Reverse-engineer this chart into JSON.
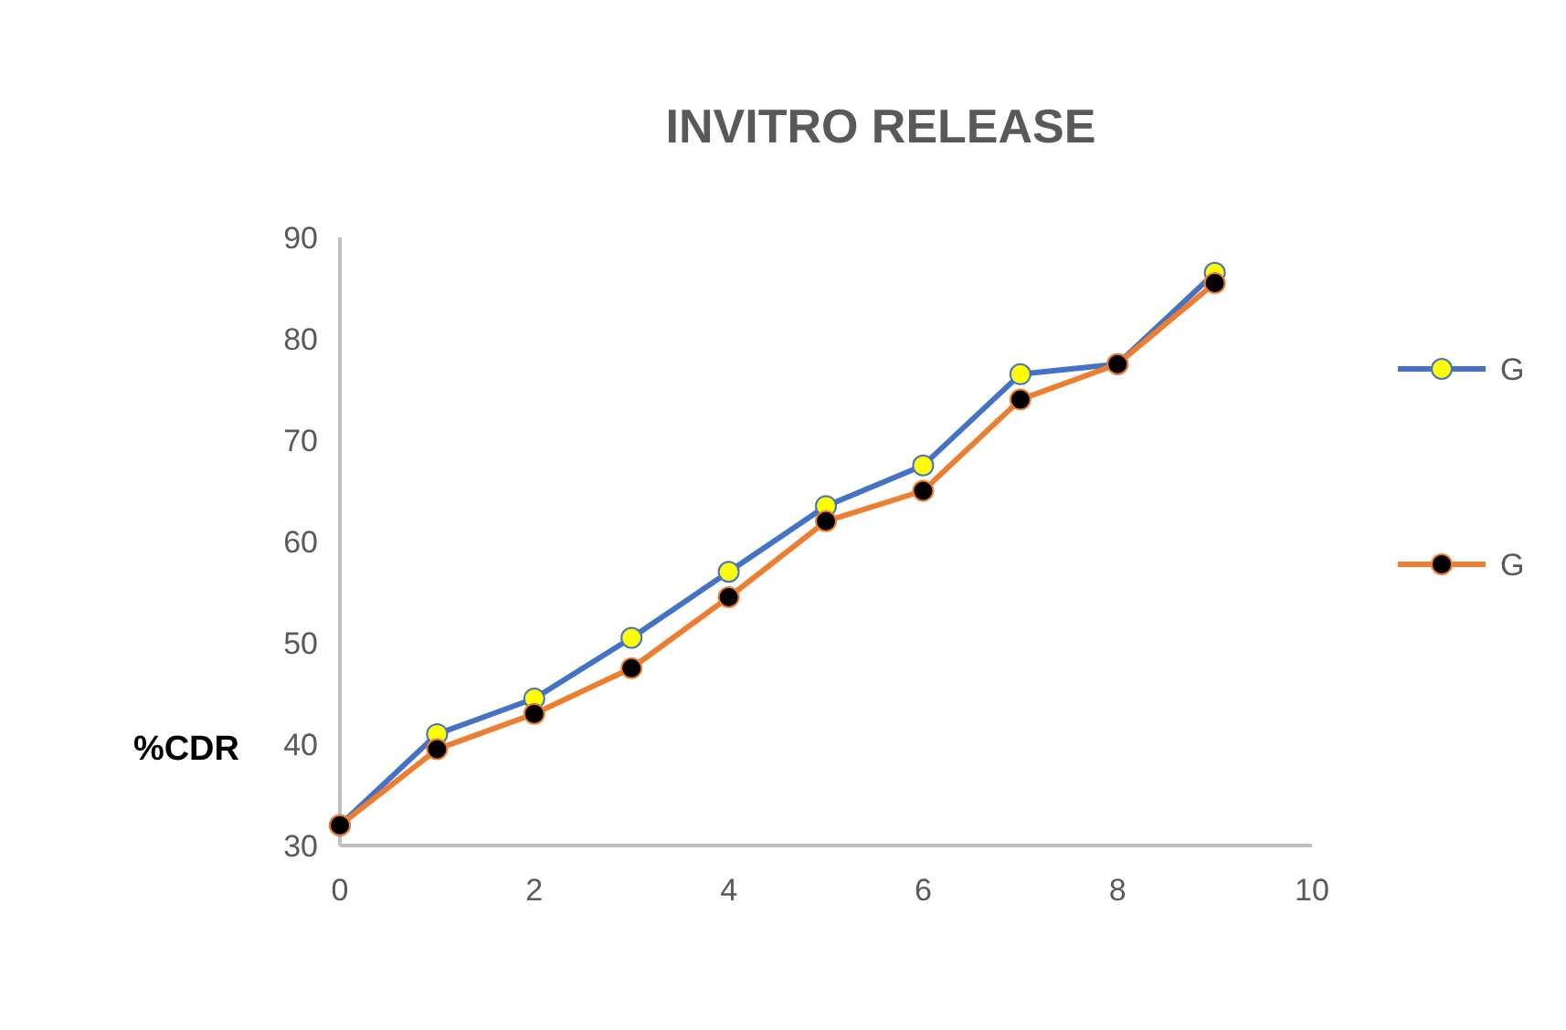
{
  "chart_data": {
    "type": "line",
    "title": "INVITRO RELEASE",
    "ylabel": "%CDR",
    "x": [
      0,
      1,
      2,
      3,
      4,
      5,
      6,
      7,
      8,
      9
    ],
    "series": [
      {
        "name": "G",
        "color": "#4472c4",
        "values": [
          32,
          41,
          44.5,
          50.5,
          57,
          63.5,
          67.5,
          76.5,
          77.5,
          86.5
        ]
      },
      {
        "name": "G",
        "color": "#ed7d31",
        "values": [
          32,
          39.5,
          43,
          47.5,
          54.5,
          62,
          65,
          74,
          77.5,
          85.5
        ]
      }
    ],
    "xlim": [
      0,
      10
    ],
    "xticks": [
      0,
      2,
      4,
      6,
      8,
      10
    ],
    "ylim": [
      30,
      90
    ],
    "yticks": [
      30,
      40,
      50,
      60,
      70,
      80,
      90
    ],
    "grid": false,
    "legend": "right",
    "marker": "circle",
    "line_style": "solid"
  }
}
